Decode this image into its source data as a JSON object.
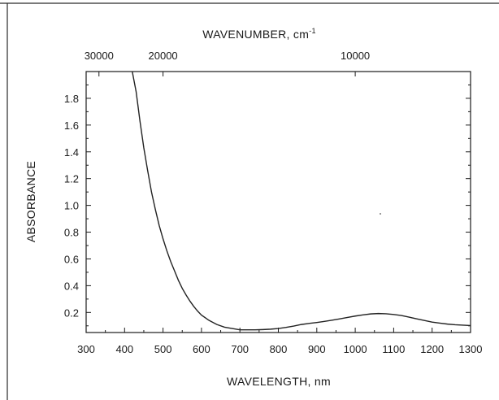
{
  "chart_data": {
    "type": "line",
    "xlabel": "WAVELENGTH, nm",
    "ylabel": "ABSORBANCE",
    "top_axis_label": "WAVENUMBER, cm",
    "top_axis_label_superscript": "-1",
    "xlim": [
      300,
      1300
    ],
    "ylim": [
      0.05,
      2.0
    ],
    "x_ticks": [
      300,
      400,
      500,
      600,
      700,
      800,
      900,
      1000,
      1100,
      1200,
      1300
    ],
    "x_tick_labels": [
      "300",
      "400",
      "500",
      "600",
      "700",
      "800",
      "900",
      "1000",
      "1100",
      "1200",
      "1300"
    ],
    "y_ticks": [
      0.2,
      0.4,
      0.6,
      0.8,
      1.0,
      1.2,
      1.4,
      1.6,
      1.8
    ],
    "y_tick_labels": [
      "0.2",
      "0.4",
      "0.6",
      "0.8",
      "1.0",
      "1.2",
      "1.4",
      "1.6",
      "1.8"
    ],
    "top_ticks": [
      30000,
      20000,
      10000
    ],
    "top_tick_labels": [
      "30000",
      "20000",
      "10000"
    ],
    "grid": false,
    "series": [
      {
        "x": [
          420,
          430,
          440,
          450,
          460,
          470,
          480,
          490,
          500,
          510,
          520,
          530,
          540,
          550,
          560,
          570,
          580,
          590,
          600,
          620,
          640,
          660,
          680,
          700,
          720,
          740,
          760,
          780,
          800,
          820,
          840,
          860,
          880,
          900,
          920,
          940,
          960,
          980,
          1000,
          1020,
          1040,
          1060,
          1080,
          1100,
          1120,
          1140,
          1160,
          1180,
          1200,
          1220,
          1240,
          1260,
          1280,
          1300
        ],
        "y": [
          2.0,
          1.85,
          1.63,
          1.43,
          1.26,
          1.1,
          0.97,
          0.85,
          0.75,
          0.66,
          0.58,
          0.51,
          0.44,
          0.38,
          0.33,
          0.285,
          0.245,
          0.21,
          0.18,
          0.14,
          0.11,
          0.09,
          0.08,
          0.07,
          0.07,
          0.07,
          0.072,
          0.075,
          0.08,
          0.088,
          0.098,
          0.11,
          0.118,
          0.125,
          0.133,
          0.142,
          0.152,
          0.163,
          0.173,
          0.182,
          0.189,
          0.192,
          0.19,
          0.185,
          0.177,
          0.165,
          0.152,
          0.14,
          0.128,
          0.12,
          0.113,
          0.108,
          0.105,
          0.102
        ]
      }
    ]
  }
}
